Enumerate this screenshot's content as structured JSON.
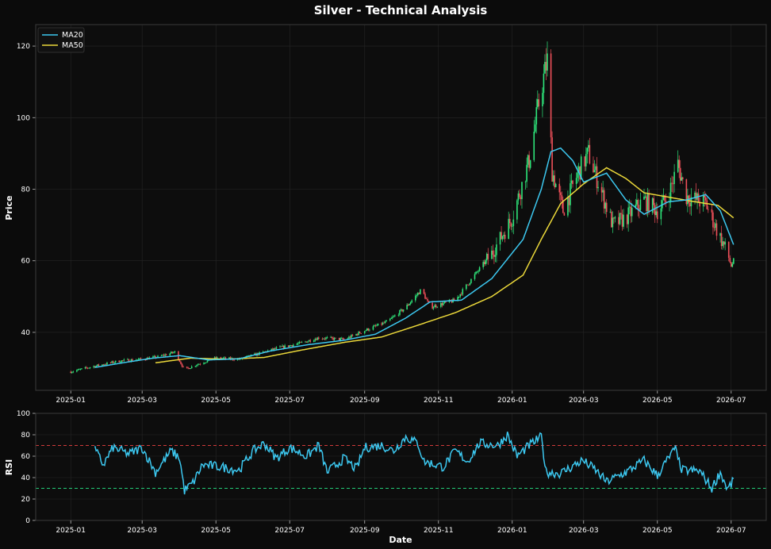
{
  "figure": {
    "title": "Silver - Technical Analysis",
    "background": "#0b0b0b",
    "panel_bg": "#0d0d0d",
    "grid_color": "#262626",
    "up_color": "#2ee57a",
    "down_color": "#f0505a",
    "ma20_color": "#3cc8f0",
    "ma50_color": "#ecd93a",
    "rsi_color": "#3cc8f0",
    "overbought_color": "#d03a3a",
    "oversold_color": "#22cc77"
  },
  "chart_data": [
    {
      "type": "candlestick",
      "ylabel": "Price",
      "xlabel": "",
      "x_ticks": [
        "2025-01",
        "2025-03",
        "2025-05",
        "2025-07",
        "2025-09",
        "2025-11",
        "2026-01",
        "2026-03",
        "2026-05",
        "2026-07"
      ],
      "y_ticks": [
        40,
        60,
        80,
        100,
        120
      ],
      "ylim": [
        23.8,
        126
      ],
      "xlim": [
        "2024-12-03",
        "2026-07-30"
      ],
      "grid": true,
      "legend": {
        "placement": "top-left",
        "entries": [
          "MA20",
          "MA50"
        ]
      },
      "price_path": [
        [
          "2025-01-01",
          29.0
        ],
        [
          "2025-01-20",
          30.5
        ],
        [
          "2025-02-10",
          32.0
        ],
        [
          "2025-03-01",
          32.5
        ],
        [
          "2025-03-15",
          33.2
        ],
        [
          "2025-03-28",
          34.5
        ],
        [
          "2025-04-05",
          29.5
        ],
        [
          "2025-04-15",
          31.0
        ],
        [
          "2025-05-01",
          32.8
        ],
        [
          "2025-05-20",
          32.5
        ],
        [
          "2025-06-05",
          34.0
        ],
        [
          "2025-06-20",
          35.5
        ],
        [
          "2025-07-10",
          37.0
        ],
        [
          "2025-07-25",
          38.5
        ],
        [
          "2025-08-15",
          38.0
        ],
        [
          "2025-09-01",
          40.5
        ],
        [
          "2025-09-20",
          43.0
        ],
        [
          "2025-10-05",
          47.0
        ],
        [
          "2025-10-18",
          52.0
        ],
        [
          "2025-10-25",
          47.0
        ],
        [
          "2025-11-15",
          49.0
        ],
        [
          "2025-12-01",
          56.0
        ],
        [
          "2025-12-15",
          62.0
        ],
        [
          "2026-01-01",
          72.0
        ],
        [
          "2026-01-15",
          88.0
        ],
        [
          "2026-01-25",
          108.0
        ],
        [
          "2026-01-30",
          116.0
        ],
        [
          "2026-02-03",
          85.0
        ],
        [
          "2026-02-12",
          74.0
        ],
        [
          "2026-02-25",
          85.0
        ],
        [
          "2026-03-05",
          90.0
        ],
        [
          "2026-03-15",
          80.0
        ],
        [
          "2026-03-25",
          70.0
        ],
        [
          "2026-04-05",
          72.0
        ],
        [
          "2026-04-20",
          77.0
        ],
        [
          "2026-05-01",
          74.0
        ],
        [
          "2026-05-10",
          78.0
        ],
        [
          "2026-05-18",
          87.0
        ],
        [
          "2026-05-25",
          78.0
        ],
        [
          "2026-06-10",
          76.0
        ],
        [
          "2026-06-20",
          68.0
        ],
        [
          "2026-06-28",
          62.0
        ],
        [
          "2026-07-01",
          58.5
        ],
        [
          "2026-07-03",
          60.0
        ]
      ],
      "ma20": [
        [
          "2025-01-21",
          30.2
        ],
        [
          "2025-02-15",
          31.6
        ],
        [
          "2025-03-10",
          32.8
        ],
        [
          "2025-04-01",
          33.5
        ],
        [
          "2025-04-25",
          32.3
        ],
        [
          "2025-05-20",
          32.6
        ],
        [
          "2025-06-15",
          34.8
        ],
        [
          "2025-07-15",
          36.5
        ],
        [
          "2025-08-15",
          37.8
        ],
        [
          "2025-09-10",
          39.5
        ],
        [
          "2025-10-05",
          44.0
        ],
        [
          "2025-10-25",
          48.5
        ],
        [
          "2025-11-20",
          49.0
        ],
        [
          "2025-12-15",
          55.0
        ],
        [
          "2026-01-10",
          66.0
        ],
        [
          "2026-01-25",
          80.0
        ],
        [
          "2026-02-02",
          90.5
        ],
        [
          "2026-02-10",
          91.5
        ],
        [
          "2026-02-20",
          88.0
        ],
        [
          "2026-03-01",
          82.0
        ],
        [
          "2026-03-20",
          84.5
        ],
        [
          "2026-04-05",
          77.0
        ],
        [
          "2026-04-20",
          73.0
        ],
        [
          "2026-05-10",
          76.5
        ],
        [
          "2026-05-25",
          77.0
        ],
        [
          "2026-06-10",
          78.5
        ],
        [
          "2026-06-22",
          74.0
        ],
        [
          "2026-07-03",
          64.5
        ]
      ],
      "ma50": [
        [
          "2025-03-12",
          31.5
        ],
        [
          "2025-04-10",
          32.8
        ],
        [
          "2025-05-10",
          32.5
        ],
        [
          "2025-06-10",
          33.0
        ],
        [
          "2025-07-10",
          35.0
        ],
        [
          "2025-08-15",
          37.2
        ],
        [
          "2025-09-15",
          38.7
        ],
        [
          "2025-10-15",
          42.0
        ],
        [
          "2025-11-15",
          45.5
        ],
        [
          "2025-12-15",
          50.0
        ],
        [
          "2026-01-10",
          56.0
        ],
        [
          "2026-01-25",
          66.0
        ],
        [
          "2026-02-10",
          76.0
        ],
        [
          "2026-03-01",
          81.5
        ],
        [
          "2026-03-20",
          86.0
        ],
        [
          "2026-04-05",
          83.0
        ],
        [
          "2026-04-20",
          79.0
        ],
        [
          "2026-05-15",
          77.5
        ],
        [
          "2026-06-01",
          76.5
        ],
        [
          "2026-06-20",
          75.5
        ],
        [
          "2026-07-03",
          72.0
        ]
      ]
    },
    {
      "type": "line",
      "ylabel": "RSI",
      "xlabel": "Date",
      "x_ticks": [
        "2025-01",
        "2025-03",
        "2025-05",
        "2025-07",
        "2025-09",
        "2025-11",
        "2026-01",
        "2026-03",
        "2026-05",
        "2026-07"
      ],
      "y_ticks": [
        0,
        20,
        40,
        60,
        80,
        100
      ],
      "ylim": [
        0,
        100
      ],
      "grid": true,
      "reference_lines": [
        70,
        30
      ],
      "rsi": [
        [
          "2025-01-21",
          66
        ],
        [
          "2025-01-28",
          52
        ],
        [
          "2025-02-05",
          68
        ],
        [
          "2025-02-18",
          62
        ],
        [
          "2025-03-01",
          68
        ],
        [
          "2025-03-12",
          45
        ],
        [
          "2025-03-25",
          65
        ],
        [
          "2025-04-01",
          58
        ],
        [
          "2025-04-05",
          28
        ],
        [
          "2025-04-12",
          35
        ],
        [
          "2025-04-20",
          52
        ],
        [
          "2025-05-05",
          50
        ],
        [
          "2025-05-20",
          47
        ],
        [
          "2025-06-01",
          65
        ],
        [
          "2025-06-10",
          72
        ],
        [
          "2025-06-20",
          58
        ],
        [
          "2025-07-01",
          68
        ],
        [
          "2025-07-15",
          60
        ],
        [
          "2025-07-25",
          70
        ],
        [
          "2025-08-01",
          45
        ],
        [
          "2025-08-15",
          58
        ],
        [
          "2025-08-25",
          48
        ],
        [
          "2025-09-01",
          68
        ],
        [
          "2025-09-15",
          70
        ],
        [
          "2025-09-25",
          65
        ],
        [
          "2025-10-05",
          78
        ],
        [
          "2025-10-15",
          72
        ],
        [
          "2025-10-20",
          55
        ],
        [
          "2025-11-05",
          50
        ],
        [
          "2025-11-15",
          65
        ],
        [
          "2025-11-25",
          55
        ],
        [
          "2025-12-05",
          72
        ],
        [
          "2025-12-20",
          70
        ],
        [
          "2025-12-28",
          80
        ],
        [
          "2026-01-05",
          60
        ],
        [
          "2026-01-15",
          70
        ],
        [
          "2026-01-25",
          78
        ],
        [
          "2026-01-29",
          45
        ],
        [
          "2026-02-10",
          44
        ],
        [
          "2026-02-28",
          56
        ],
        [
          "2026-03-10",
          48
        ],
        [
          "2026-03-20",
          36
        ],
        [
          "2026-04-05",
          45
        ],
        [
          "2026-04-20",
          56
        ],
        [
          "2026-05-01",
          42
        ],
        [
          "2026-05-10",
          58
        ],
        [
          "2026-05-17",
          68
        ],
        [
          "2026-05-20",
          47
        ],
        [
          "2026-06-05",
          46
        ],
        [
          "2026-06-15",
          30
        ],
        [
          "2026-06-22",
          45
        ],
        [
          "2026-06-28",
          29
        ],
        [
          "2026-07-03",
          37
        ]
      ]
    }
  ]
}
